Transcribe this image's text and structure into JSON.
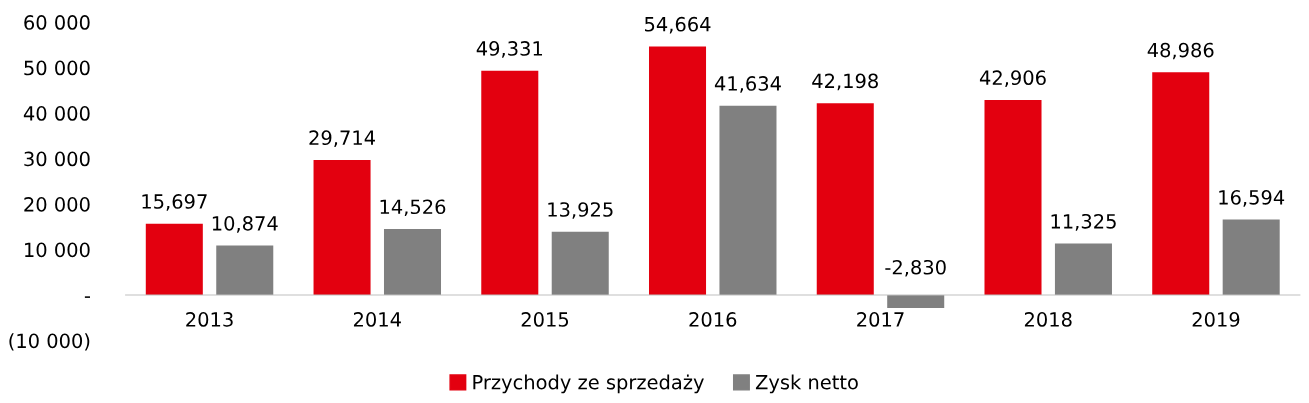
{
  "chart_data": {
    "type": "bar",
    "categories": [
      "2013",
      "2014",
      "2015",
      "2016",
      "2017",
      "2018",
      "2019"
    ],
    "series": [
      {
        "name": "Przychody ze sprzedaży",
        "color": "#e3000f",
        "values": [
          15697,
          29714,
          49331,
          54664,
          42198,
          42906,
          48986
        ],
        "value_labels": [
          "15,697",
          "29,714",
          "49,331",
          "54,664",
          "42,198",
          "42,906",
          "48,986"
        ]
      },
      {
        "name": "Zysk netto",
        "color": "#808080",
        "values": [
          10874,
          14526,
          13925,
          41634,
          -2830,
          11325,
          16594
        ],
        "value_labels": [
          "10,874",
          "14,526",
          "13,925",
          "41,634",
          "-2,830",
          "11,325",
          "16,594"
        ]
      }
    ],
    "ylim": [
      -10000,
      60000
    ],
    "yticks": [
      {
        "value": -10000,
        "label": "(10 000)"
      },
      {
        "value": 0,
        "label": "-"
      },
      {
        "value": 10000,
        "label": "10 000"
      },
      {
        "value": 20000,
        "label": "20 000"
      },
      {
        "value": 30000,
        "label": "30 000"
      },
      {
        "value": 40000,
        "label": "40 000"
      },
      {
        "value": 50000,
        "label": "50 000"
      },
      {
        "value": 60000,
        "label": "60 000"
      }
    ],
    "grid": false,
    "legend": "bottom"
  }
}
